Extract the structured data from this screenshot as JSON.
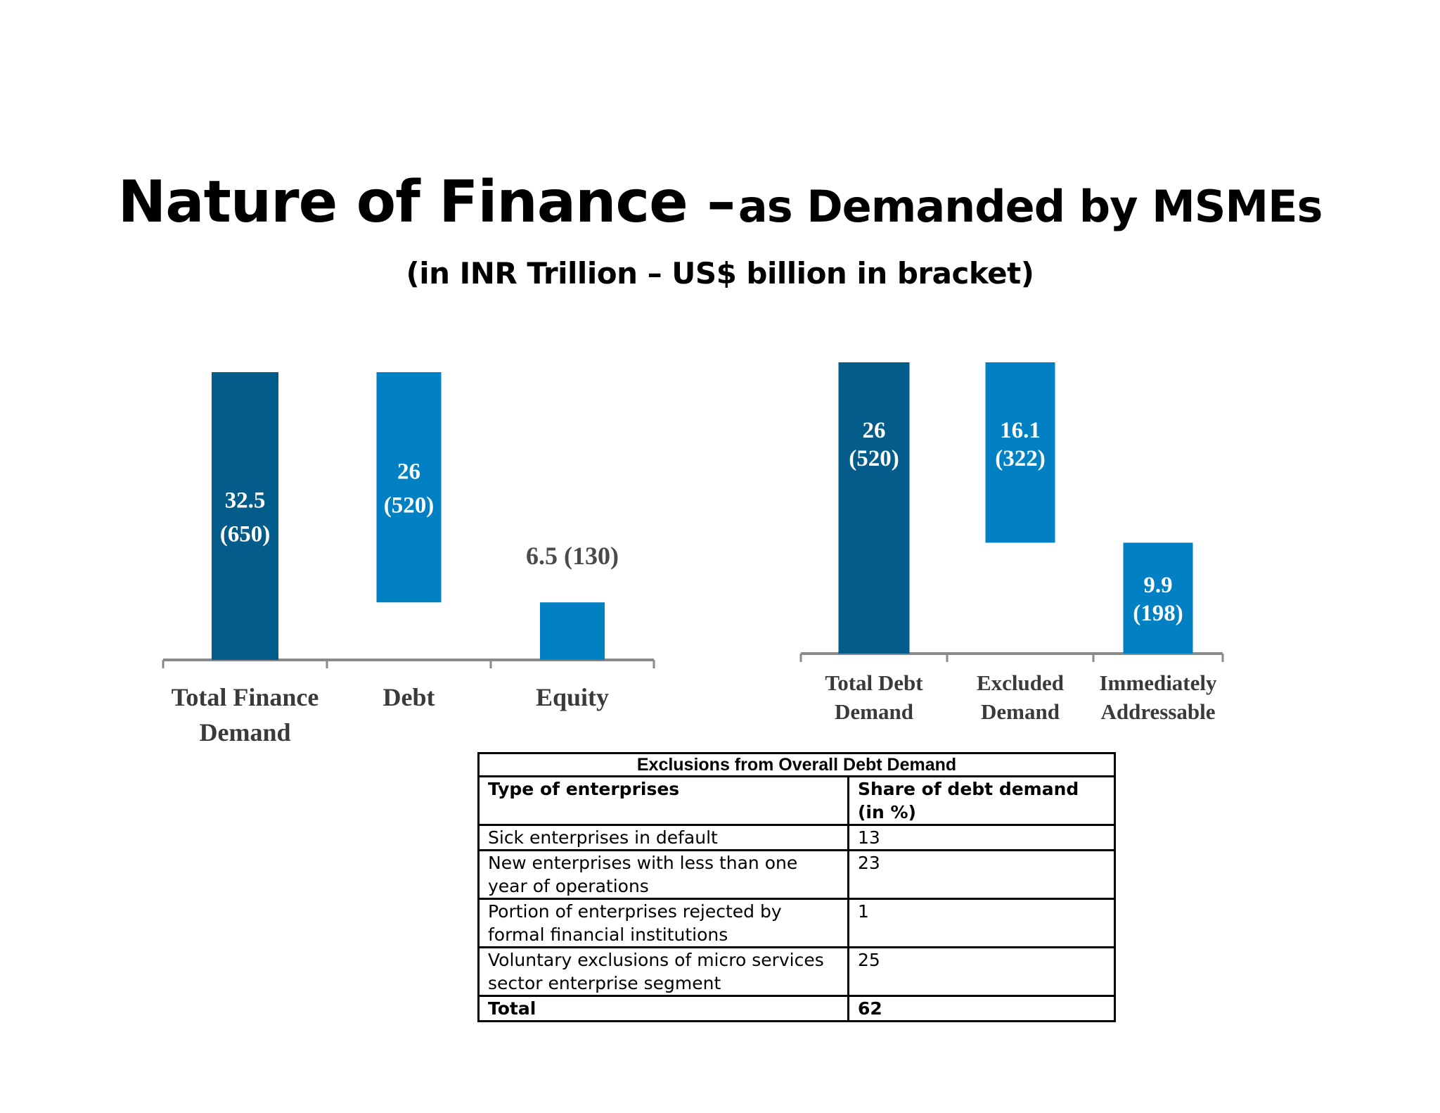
{
  "title": {
    "main": "Nature of Finance –",
    "rest": "as Demanded by MSMEs",
    "subtitle": "(in INR Trillion – US$ billion in bracket)"
  },
  "colors": {
    "dark_bar": "#035c89",
    "light_bar": "#0280c4",
    "axis": "#8a8a8a"
  },
  "chart_data": [
    {
      "type": "bar",
      "subtype": "waterfall",
      "categories": [
        [
          "Total Finance",
          "Demand"
        ],
        [
          "Debt"
        ],
        [
          "Equity"
        ]
      ],
      "values": [
        32.5,
        26,
        6.5
      ],
      "ranges": [
        [
          0,
          32.5
        ],
        [
          6.5,
          32.5
        ],
        [
          0,
          6.5
        ]
      ],
      "labels": [
        [
          "32.5",
          "(650)"
        ],
        [
          "26",
          "(520)"
        ],
        [
          "6.5 (130)"
        ]
      ],
      "label_position": [
        "inside",
        "inside",
        "above"
      ],
      "colors": [
        "#035c89",
        "#0280c4",
        "#0280c4"
      ],
      "ylim": [
        0,
        32.5
      ],
      "grid": false
    },
    {
      "type": "bar",
      "subtype": "waterfall",
      "categories": [
        [
          "Total Debt",
          "Demand"
        ],
        [
          "Excluded",
          "Demand"
        ],
        [
          "Immediately",
          "Addressable"
        ]
      ],
      "values": [
        26,
        16.1,
        9.9
      ],
      "ranges": [
        [
          0,
          26
        ],
        [
          9.9,
          26
        ],
        [
          0,
          9.9
        ]
      ],
      "labels": [
        [
          "26",
          "(520)"
        ],
        [
          "16.1",
          "(322)"
        ],
        [
          "9.9",
          "(198)"
        ]
      ],
      "label_position": [
        "inside-top",
        "inside-top",
        "inside"
      ],
      "colors": [
        "#035c89",
        "#0280c4",
        "#0280c4"
      ],
      "ylim": [
        0,
        26
      ],
      "grid": false
    }
  ],
  "table": {
    "caption": "Exclusions from Overall Debt Demand",
    "headers": [
      "Type of enterprises",
      "Share of debt demand (in %)"
    ],
    "rows": [
      [
        "Sick enterprises in default",
        "13"
      ],
      [
        "New enterprises with less than one year of operations",
        "23"
      ],
      [
        "Portion of enterprises rejected by formal financial institutions",
        "1"
      ],
      [
        "Voluntary exclusions of micro services sector enterprise segment",
        "25"
      ]
    ],
    "total": [
      "Total",
      "62"
    ]
  }
}
